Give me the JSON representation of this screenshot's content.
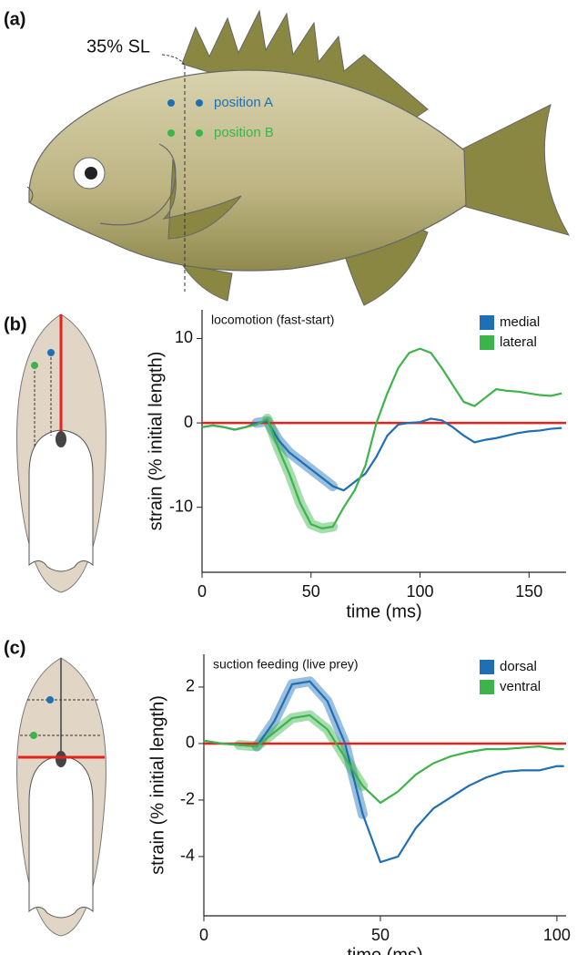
{
  "panel_labels": [
    "(a)",
    "(b)",
    "(c)"
  ],
  "fish": {
    "annotation": "35% SL",
    "position_a": "position A",
    "position_b": "position B"
  },
  "chart_data": [
    {
      "type": "line",
      "title": "locomotion (fast-start)",
      "x_label": "time (ms)",
      "y_label": "strain (% initial length)",
      "x": [
        0,
        5,
        10,
        15,
        20,
        25,
        30,
        35,
        40,
        45,
        50,
        55,
        60,
        65,
        70,
        75,
        80,
        85,
        90,
        95,
        100,
        105,
        110,
        115,
        120,
        125,
        130,
        135,
        140,
        145,
        150,
        155,
        160,
        165
      ],
      "series": [
        {
          "name": "medial",
          "color": "#1f6fb4",
          "highlight": [
            22,
            62
          ],
          "values": [
            -0.5,
            -0.3,
            -0.5,
            -0.8,
            -0.5,
            0,
            0.2,
            -2,
            -3.5,
            -4.5,
            -5.5,
            -6.5,
            -7.5,
            -8,
            -7,
            -6,
            -4,
            -1.5,
            -0.2,
            0,
            0.1,
            0.5,
            0.3,
            -0.5,
            -1.5,
            -2.3,
            -2,
            -1.8,
            -1.5,
            -1.2,
            -1,
            -0.9,
            -0.7,
            -0.6
          ]
        },
        {
          "name": "lateral",
          "color": "#3cb44b",
          "highlight": [
            28,
            62
          ],
          "values": [
            -0.5,
            -0.3,
            -0.5,
            -0.8,
            -0.5,
            -0.2,
            0.5,
            -3,
            -6,
            -9.5,
            -12,
            -12.5,
            -12.3,
            -10,
            -8,
            -5,
            0,
            3.5,
            6.5,
            8.3,
            8.8,
            8.3,
            6.5,
            4.5,
            2.5,
            2,
            3,
            4,
            3.8,
            3.7,
            3.5,
            3.3,
            3.2,
            3.5
          ]
        }
      ],
      "xlim": [
        0,
        167
      ],
      "xticks": [
        0,
        50,
        100,
        150
      ],
      "ylim": [
        -17.7,
        13.4
      ],
      "yticks": [
        -10,
        0,
        10
      ],
      "hline": 0,
      "hline_color": "#e8211b",
      "legend": "upper right"
    },
    {
      "type": "line",
      "title": "suction feeding (live prey)",
      "x_label": "time (ms)",
      "y_label": "strain (% initial length)",
      "x": [
        0,
        5,
        10,
        15,
        20,
        25,
        30,
        35,
        40,
        45,
        50,
        55,
        60,
        65,
        70,
        75,
        80,
        85,
        90,
        95,
        100,
        102
      ],
      "series": [
        {
          "name": "dorsal",
          "color": "#1f6fb4",
          "highlight": [
            13,
            48
          ],
          "values": [
            0.1,
            0,
            -0.05,
            -0.1,
            0.8,
            2.1,
            2.2,
            1.5,
            0,
            -2.5,
            -4.2,
            -4,
            -3,
            -2.3,
            -1.9,
            -1.5,
            -1.2,
            -1,
            -0.95,
            -0.95,
            -0.8,
            -0.8
          ]
        },
        {
          "name": "ventral",
          "color": "#3cb44b",
          "highlight": [
            8,
            49
          ],
          "values": [
            0.1,
            0,
            -0.05,
            -0.1,
            0.4,
            0.9,
            1.0,
            0.5,
            -0.5,
            -1.5,
            -2.1,
            -1.7,
            -1.1,
            -0.7,
            -0.45,
            -0.3,
            -0.2,
            -0.2,
            -0.15,
            -0.1,
            -0.2,
            -0.2
          ]
        }
      ],
      "xlim": [
        0,
        102.6
      ],
      "xticks": [
        0,
        50,
        100
      ],
      "ylim": [
        -6.1,
        3.16
      ],
      "yticks": [
        -4,
        -2,
        0,
        2
      ],
      "hline": 0,
      "hline_color": "#e8211b",
      "legend": "upper right"
    }
  ]
}
